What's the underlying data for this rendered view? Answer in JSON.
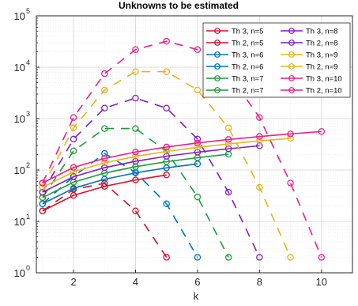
{
  "chart_data": {
    "type": "line",
    "title": "Unknowns to be estimated",
    "xlabel": "k",
    "ylabel": "",
    "xlim": [
      0.8,
      11.0
    ],
    "ylim_log10": [
      0,
      5
    ],
    "y_scale": "log",
    "x_ticks": [
      2,
      4,
      6,
      8,
      10
    ],
    "y_ticks": [
      {
        "base": "10",
        "exp": "0"
      },
      {
        "base": "10",
        "exp": "1"
      },
      {
        "base": "10",
        "exp": "2"
      },
      {
        "base": "10",
        "exp": "3"
      },
      {
        "base": "10",
        "exp": "4"
      },
      {
        "base": "10",
        "exp": "5"
      }
    ],
    "grid": true,
    "legend_position": "top-right",
    "series": [
      {
        "name": "Th 3, n=5",
        "color": "#d0122d",
        "dashed": true,
        "x": [
          1,
          2,
          3,
          4,
          5
        ],
        "y": [
          16,
          42,
          55,
          16,
          2
        ]
      },
      {
        "name": "Th 2, n=5",
        "color": "#d0122d",
        "dashed": false,
        "x": [
          1,
          2,
          3,
          4,
          5
        ],
        "y": [
          16,
          32,
          48,
          64,
          80
        ]
      },
      {
        "name": "Th 3, n=6",
        "color": "#0072bd",
        "dashed": true,
        "x": [
          1,
          2,
          3,
          4,
          5,
          6
        ],
        "y": [
          22,
          75,
          210,
          90,
          22,
          2
        ]
      },
      {
        "name": "Th 2, n=6",
        "color": "#0072bd",
        "dashed": false,
        "x": [
          1,
          2,
          3,
          4,
          5,
          6
        ],
        "y": [
          22,
          44,
          66,
          88,
          110,
          132
        ]
      },
      {
        "name": "Th 3, n=7",
        "color": "#1d9a3c",
        "dashed": true,
        "x": [
          1,
          2,
          3,
          4,
          5,
          6,
          7
        ],
        "y": [
          29,
          235,
          640,
          640,
          230,
          30,
          2
        ]
      },
      {
        "name": "Th 2, n=7",
        "color": "#1d9a3c",
        "dashed": false,
        "x": [
          1,
          2,
          3,
          4,
          5,
          6,
          7
        ],
        "y": [
          29,
          58,
          87,
          116,
          145,
          174,
          203
        ]
      },
      {
        "name": "Th 3, n=8",
        "color": "#7e1fbf",
        "dashed": true,
        "x": [
          1,
          2,
          3,
          4,
          5,
          6,
          7,
          8
        ],
        "y": [
          37,
          400,
          1600,
          2500,
          1600,
          400,
          37,
          2
        ]
      },
      {
        "name": "Th 2, n=8",
        "color": "#7e1fbf",
        "dashed": false,
        "x": [
          1,
          2,
          3,
          4,
          5,
          6,
          7,
          8
        ],
        "y": [
          37,
          74,
          111,
          148,
          185,
          222,
          259,
          296
        ]
      },
      {
        "name": "Th 3, n=9",
        "color": "#e3b51c",
        "dashed": true,
        "x": [
          1,
          2,
          3,
          4,
          5,
          6,
          7,
          8,
          9
        ],
        "y": [
          46,
          660,
          3600,
          8200,
          8200,
          3600,
          660,
          46,
          2
        ]
      },
      {
        "name": "Th 2, n=9",
        "color": "#e3b51c",
        "dashed": false,
        "x": [
          1,
          2,
          3,
          4,
          5,
          6,
          7,
          8,
          9
        ],
        "y": [
          46,
          92,
          138,
          184,
          230,
          276,
          322,
          368,
          414
        ]
      },
      {
        "name": "Th 3, n=10",
        "color": "#e81f8b",
        "dashed": true,
        "x": [
          1,
          2,
          3,
          4,
          5,
          6,
          7,
          8,
          9,
          10
        ],
        "y": [
          56,
          1050,
          7500,
          22000,
          32000,
          22000,
          7500,
          1050,
          56,
          2
        ]
      },
      {
        "name": "Th 2, n=10",
        "color": "#e81f8b",
        "dashed": false,
        "x": [
          1,
          2,
          3,
          4,
          5,
          6,
          7,
          8,
          9,
          10
        ],
        "y": [
          56,
          112,
          168,
          224,
          280,
          336,
          392,
          448,
          504,
          560
        ]
      }
    ]
  }
}
